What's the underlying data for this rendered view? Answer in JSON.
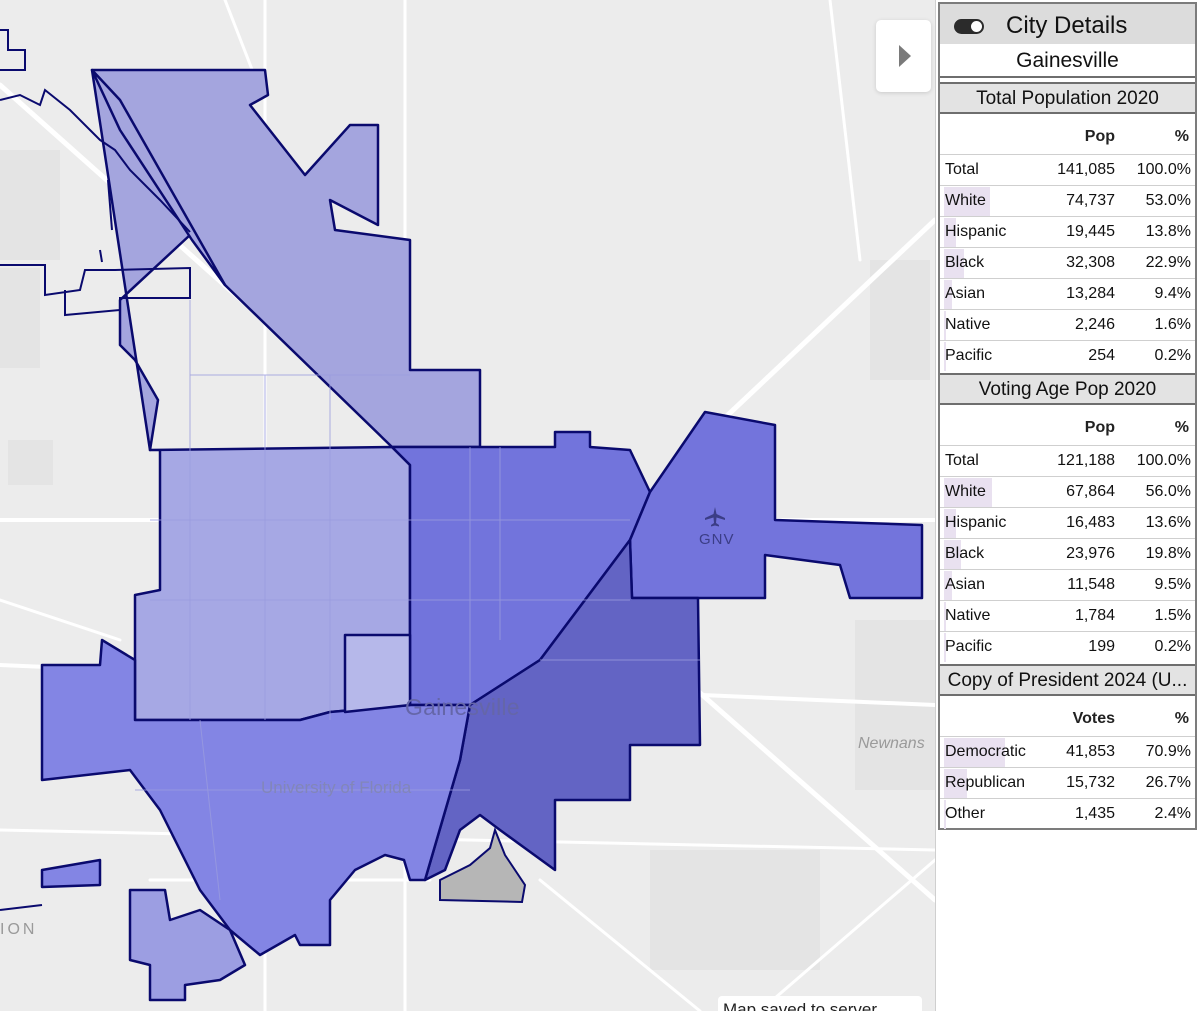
{
  "map": {
    "labels": {
      "city": "Gainesville",
      "university": "University of Florida",
      "airport": "GNV",
      "newnans": "Newnans",
      "edge_fragment": "ION"
    },
    "status_toast": "Map saved to server",
    "colors": {
      "background": "#ececec",
      "roads": "#ffffff",
      "boundary": "#0a0a6e",
      "region_light": "#a7a8e0",
      "region_mid": "#8082e2",
      "region_dark": "#7072dc",
      "region_darkest": "#6162c2",
      "excluded_area": "#b6b6b6"
    },
    "icons": {
      "collapse": "caret-right-icon",
      "airport": "airplane-icon"
    }
  },
  "panel": {
    "title": "City Details",
    "toggle_icon": "toggle-switch-icon",
    "city_name": "Gainesville",
    "sections": [
      {
        "title": "Total Population 2020",
        "col1": "Pop",
        "col2": "%",
        "rows": [
          {
            "label": "Total",
            "value": "141,085",
            "pct": "100.0%",
            "share": 0
          },
          {
            "label": "White",
            "value": "74,737",
            "pct": "53.0%",
            "share": 0.53
          },
          {
            "label": "Hispanic",
            "value": "19,445",
            "pct": "13.8%",
            "share": 0.138
          },
          {
            "label": "Black",
            "value": "32,308",
            "pct": "22.9%",
            "share": 0.229
          },
          {
            "label": "Asian",
            "value": "13,284",
            "pct": "9.4%",
            "share": 0.094
          },
          {
            "label": "Native",
            "value": "2,246",
            "pct": "1.6%",
            "share": 0.016
          },
          {
            "label": "Pacific",
            "value": "254",
            "pct": "0.2%",
            "share": 0.002
          }
        ]
      },
      {
        "title": "Voting Age Pop 2020",
        "col1": "Pop",
        "col2": "%",
        "rows": [
          {
            "label": "Total",
            "value": "121,188",
            "pct": "100.0%",
            "share": 0
          },
          {
            "label": "White",
            "value": "67,864",
            "pct": "56.0%",
            "share": 0.56
          },
          {
            "label": "Hispanic",
            "value": "16,483",
            "pct": "13.6%",
            "share": 0.136
          },
          {
            "label": "Black",
            "value": "23,976",
            "pct": "19.8%",
            "share": 0.198
          },
          {
            "label": "Asian",
            "value": "11,548",
            "pct": "9.5%",
            "share": 0.095
          },
          {
            "label": "Native",
            "value": "1,784",
            "pct": "1.5%",
            "share": 0.015
          },
          {
            "label": "Pacific",
            "value": "199",
            "pct": "0.2%",
            "share": 0.002
          }
        ]
      },
      {
        "title": "Copy of President 2024 (U...",
        "col1": "Votes",
        "col2": "%",
        "rows": [
          {
            "label": "Democratic",
            "value": "41,853",
            "pct": "70.9%",
            "share": 0.709
          },
          {
            "label": "Republican",
            "value": "15,732",
            "pct": "26.7%",
            "share": 0.267
          },
          {
            "label": "Other",
            "value": "1,435",
            "pct": "2.4%",
            "share": 0.024
          }
        ]
      }
    ],
    "colors": {
      "bar": "#e9e1f0",
      "header_bg": "#dcdcdc",
      "section_bg": "#e3e3e3"
    }
  }
}
